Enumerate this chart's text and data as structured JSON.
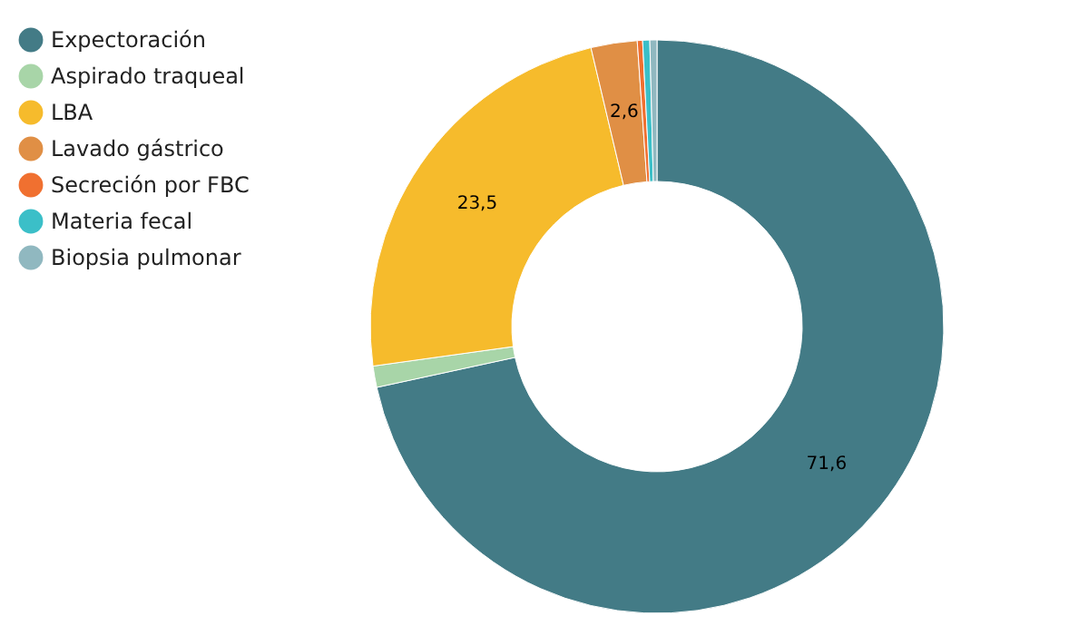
{
  "chart_data": {
    "type": "donut",
    "categories": [
      "Expectoración",
      "Aspirado traqueal",
      "LBA",
      "Lavado gástrico",
      "Secreción por FBC",
      "Materia fecal",
      "Biopsia pulmonar"
    ],
    "values": [
      71.6,
      1.2,
      23.5,
      2.6,
      0.3,
      0.4,
      0.4
    ],
    "colors": [
      "#437b86",
      "#a8d5a8",
      "#f6bb2c",
      "#e08f45",
      "#f07030",
      "#3bbfc8",
      "#90b8c0"
    ],
    "value_labels": [
      "71,6",
      null,
      "23,5",
      "2,6",
      null,
      null,
      null
    ],
    "legend": "top left"
  }
}
